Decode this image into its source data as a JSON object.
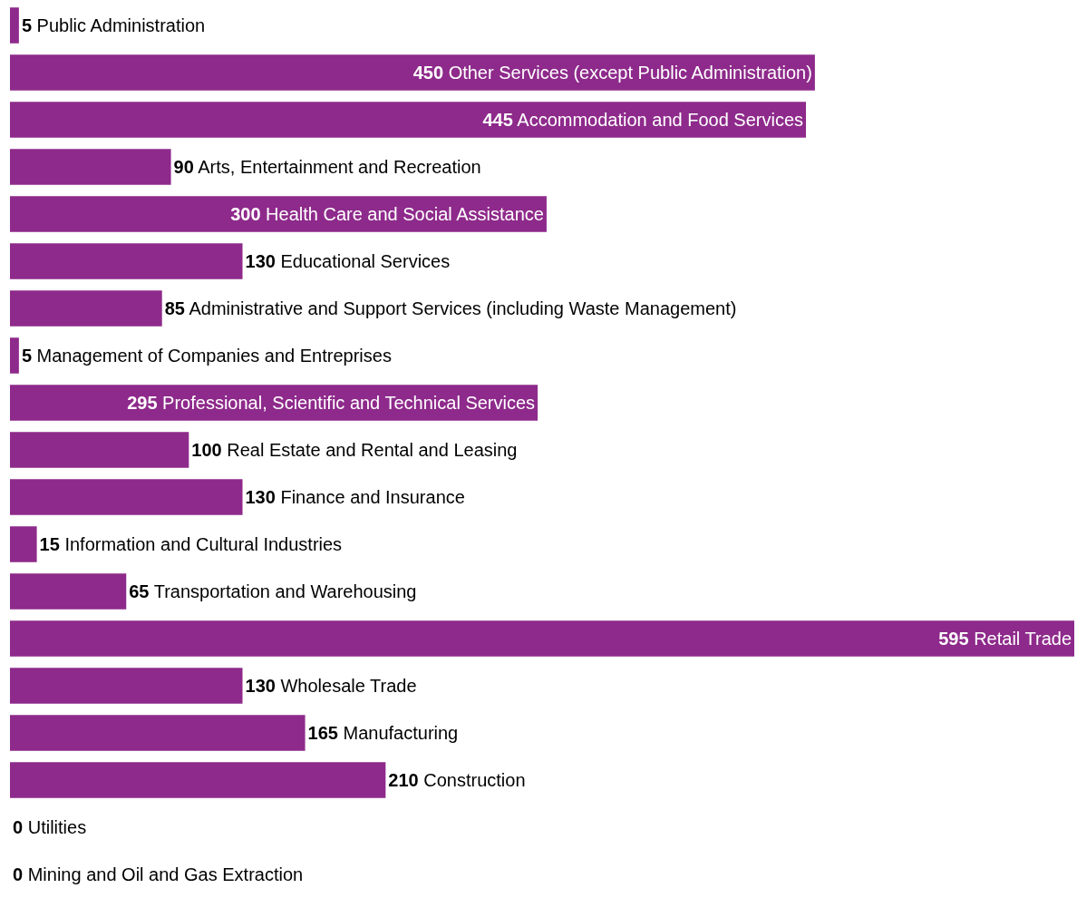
{
  "chart_data": {
    "type": "bar",
    "orientation": "horizontal",
    "categories": [
      "Public Administration",
      "Other Services (except Public Administration)",
      "Accommodation and Food Services",
      "Arts, Entertainment and Recreation",
      "Health Care and Social Assistance",
      "Educational Services",
      "Administrative and Support Services (including Waste Management)",
      "Management of Companies and Entreprises",
      "Professional, Scientific and Technical Services",
      "Real Estate and Rental and Leasing",
      "Finance and Insurance",
      "Information and Cultural Industries",
      "Transportation and Warehousing",
      "Retail Trade",
      "Wholesale Trade",
      "Manufacturing",
      "Construction",
      "Utilities",
      "Mining and Oil and Gas Extraction"
    ],
    "values": [
      5,
      450,
      445,
      90,
      300,
      130,
      85,
      5,
      295,
      100,
      130,
      15,
      65,
      595,
      130,
      165,
      210,
      0,
      0
    ],
    "color": "#8e2a8b",
    "data_labels": true,
    "tick_labels": false,
    "legend": false
  }
}
